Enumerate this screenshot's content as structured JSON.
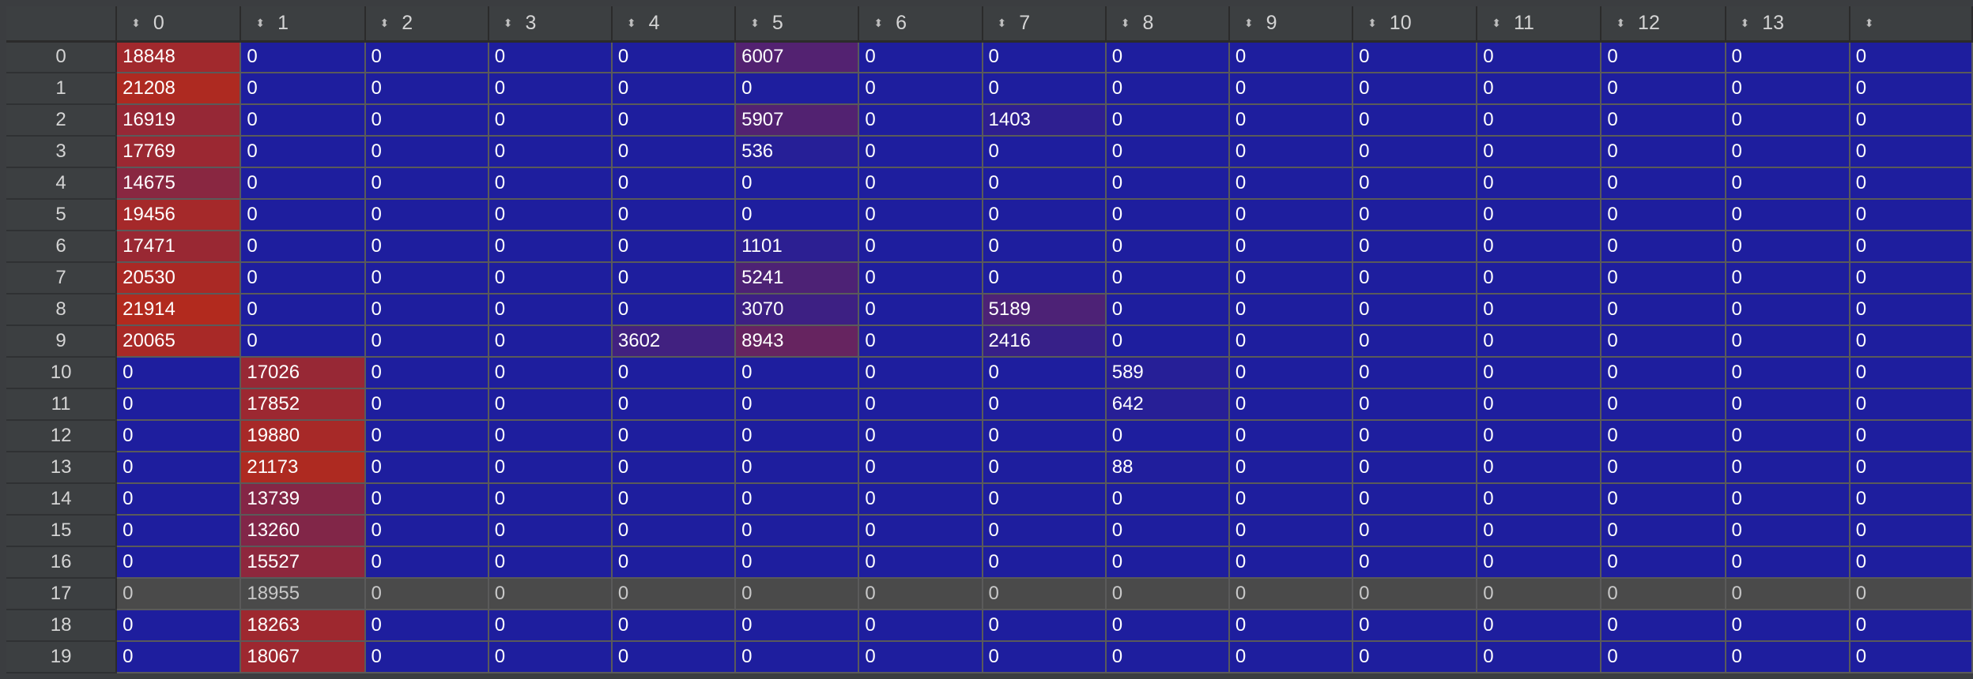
{
  "table": {
    "columns": [
      "0",
      "1",
      "2",
      "3",
      "4",
      "5",
      "6",
      "7",
      "8",
      "9",
      "10",
      "11",
      "12",
      "13",
      ""
    ],
    "index": [
      "0",
      "1",
      "2",
      "3",
      "4",
      "5",
      "6",
      "7",
      "8",
      "9",
      "10",
      "11",
      "12",
      "13",
      "14",
      "15",
      "16",
      "17",
      "18",
      "19"
    ],
    "rows": [
      [
        "18848",
        "0",
        "0",
        "0",
        "0",
        "6007",
        "0",
        "0",
        "0",
        "0",
        "0",
        "0",
        "0",
        "0",
        "0"
      ],
      [
        "21208",
        "0",
        "0",
        "0",
        "0",
        "0",
        "0",
        "0",
        "0",
        "0",
        "0",
        "0",
        "0",
        "0",
        "0"
      ],
      [
        "16919",
        "0",
        "0",
        "0",
        "0",
        "5907",
        "0",
        "1403",
        "0",
        "0",
        "0",
        "0",
        "0",
        "0",
        "0"
      ],
      [
        "17769",
        "0",
        "0",
        "0",
        "0",
        "536",
        "0",
        "0",
        "0",
        "0",
        "0",
        "0",
        "0",
        "0",
        "0"
      ],
      [
        "14675",
        "0",
        "0",
        "0",
        "0",
        "0",
        "0",
        "0",
        "0",
        "0",
        "0",
        "0",
        "0",
        "0",
        "0"
      ],
      [
        "19456",
        "0",
        "0",
        "0",
        "0",
        "0",
        "0",
        "0",
        "0",
        "0",
        "0",
        "0",
        "0",
        "0",
        "0"
      ],
      [
        "17471",
        "0",
        "0",
        "0",
        "0",
        "1101",
        "0",
        "0",
        "0",
        "0",
        "0",
        "0",
        "0",
        "0",
        "0"
      ],
      [
        "20530",
        "0",
        "0",
        "0",
        "0",
        "5241",
        "0",
        "0",
        "0",
        "0",
        "0",
        "0",
        "0",
        "0",
        "0"
      ],
      [
        "21914",
        "0",
        "0",
        "0",
        "0",
        "3070",
        "0",
        "5189",
        "0",
        "0",
        "0",
        "0",
        "0",
        "0",
        "0"
      ],
      [
        "20065",
        "0",
        "0",
        "0",
        "3602",
        "8943",
        "0",
        "2416",
        "0",
        "0",
        "0",
        "0",
        "0",
        "0",
        "0"
      ],
      [
        "0",
        "17026",
        "0",
        "0",
        "0",
        "0",
        "0",
        "0",
        "589",
        "0",
        "0",
        "0",
        "0",
        "0",
        "0"
      ],
      [
        "0",
        "17852",
        "0",
        "0",
        "0",
        "0",
        "0",
        "0",
        "642",
        "0",
        "0",
        "0",
        "0",
        "0",
        "0"
      ],
      [
        "0",
        "19880",
        "0",
        "0",
        "0",
        "0",
        "0",
        "0",
        "0",
        "0",
        "0",
        "0",
        "0",
        "0",
        "0"
      ],
      [
        "0",
        "21173",
        "0",
        "0",
        "0",
        "0",
        "0",
        "0",
        "88",
        "0",
        "0",
        "0",
        "0",
        "0",
        "0"
      ],
      [
        "0",
        "13739",
        "0",
        "0",
        "0",
        "0",
        "0",
        "0",
        "0",
        "0",
        "0",
        "0",
        "0",
        "0",
        "0"
      ],
      [
        "0",
        "13260",
        "0",
        "0",
        "0",
        "0",
        "0",
        "0",
        "0",
        "0",
        "0",
        "0",
        "0",
        "0",
        "0"
      ],
      [
        "0",
        "15527",
        "0",
        "0",
        "0",
        "0",
        "0",
        "0",
        "0",
        "0",
        "0",
        "0",
        "0",
        "0",
        "0"
      ],
      [
        "0",
        "18955",
        "0",
        "0",
        "0",
        "0",
        "0",
        "0",
        "0",
        "0",
        "0",
        "0",
        "0",
        "0",
        "0"
      ],
      [
        "0",
        "18263",
        "0",
        "0",
        "0",
        "0",
        "0",
        "0",
        "0",
        "0",
        "0",
        "0",
        "0",
        "0",
        "0"
      ],
      [
        "0",
        "18067",
        "0",
        "0",
        "0",
        "0",
        "0",
        "0",
        "0",
        "0",
        "0",
        "0",
        "0",
        "0",
        "0"
      ]
    ],
    "selected_row": 17,
    "sort_icon": "sort-arrows-icon",
    "colors": {
      "low": "#1e1e9e",
      "high": "#b22a1e",
      "header_bg": "#3c3f41",
      "selected_row": "#4a4a4a"
    },
    "heat_max": 21914
  }
}
